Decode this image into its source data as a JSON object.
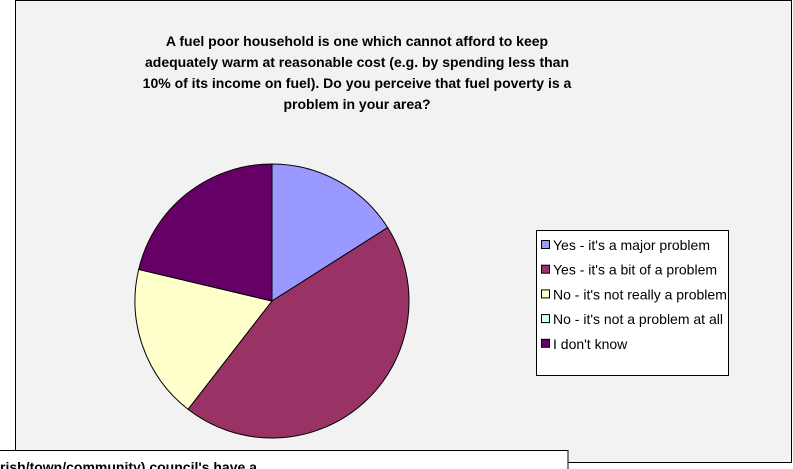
{
  "chart_data": {
    "type": "pie",
    "title": [
      "A fuel poor household is one which cannot afford to keep",
      "adequately warm at reasonable cost (e.g. by spending less than",
      "10% of its income on fuel). Do you perceive that fuel poverty is a",
      "problem in your area?"
    ],
    "categories": [
      "Yes - it's a major problem",
      "Yes - it's a bit of a problem",
      "No - it's not really a problem",
      "No - it's not a problem at all",
      "I don't know"
    ],
    "values": [
      16,
      44.5,
      18.2,
      0,
      21.3
    ],
    "colors": [
      "#9999ff",
      "#993366",
      "#ffffcc",
      "#ccffff",
      "#660066"
    ],
    "legend": "right"
  },
  "next_chart_title": "rish/town/community) council's have a"
}
